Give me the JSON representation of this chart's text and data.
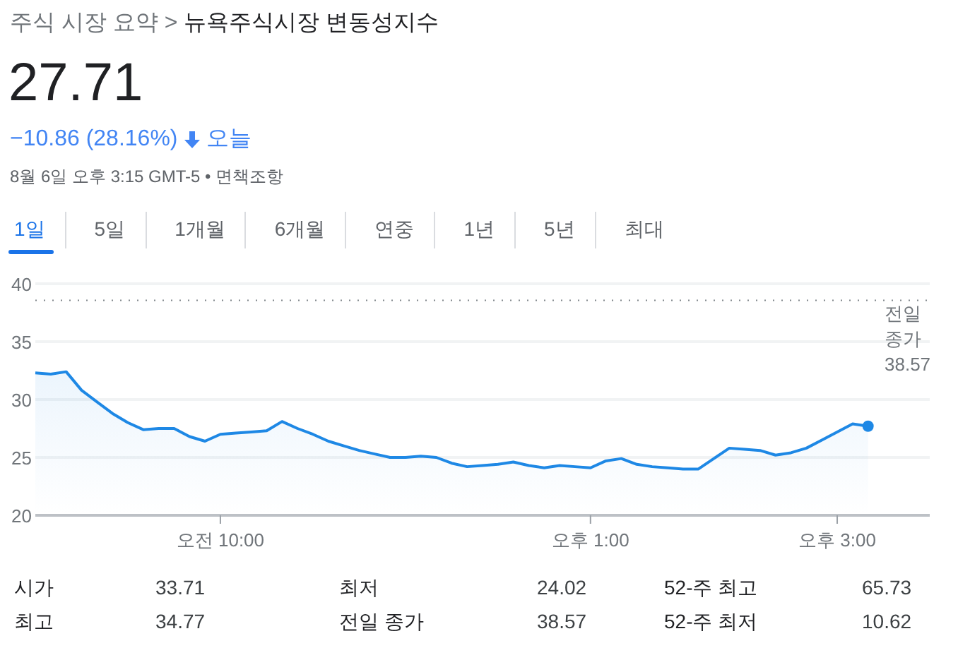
{
  "chart_data": {
    "type": "area",
    "title": "뉴욕주식시장 변동성지수",
    "annotations": [
      "주식 시장 요약 >",
      "27.71",
      "−10.86 (28.16%)",
      "오늘",
      "8월 6일 오후 3:15 GMT-5 • 면책조항",
      "1일",
      "5일",
      "1개월",
      "6개월",
      "연중",
      "1년",
      "5년",
      "최대",
      "시가",
      "33.71",
      "최저",
      "24.02",
      "52-주 최고",
      "65.73",
      "최고",
      "34.77",
      "전일 종가",
      "38.57",
      "52-주 최저",
      "10.62"
    ],
    "categories": [
      null,
      null,
      null,
      null,
      null,
      null,
      null,
      null,
      null,
      null,
      null,
      null,
      "오전 10:00",
      null,
      null,
      null,
      null,
      null,
      null,
      null,
      null,
      null,
      null,
      null,
      null,
      null,
      null,
      null,
      null,
      null,
      null,
      null,
      null,
      null,
      null,
      null,
      "오후 1:00",
      null,
      null,
      null,
      null,
      null,
      null,
      null,
      null,
      null,
      null,
      null,
      null,
      null,
      null,
      null,
      "오후 3:00",
      null,
      null,
      null,
      null,
      null,
      null
    ],
    "series": [
      {
        "color": "#1e88e5",
        "values": [
          32.3,
          32.2,
          32.4,
          30.8,
          29.8,
          28.8,
          28.0,
          27.4,
          27.5,
          27.5,
          26.8,
          26.4,
          27.0,
          27.1,
          27.2,
          27.3,
          28.1,
          27.5,
          27.0,
          26.4,
          26.0,
          25.6,
          25.3,
          25.0,
          25.0,
          25.1,
          25.0,
          24.5,
          24.2,
          24.3,
          24.4,
          24.6,
          24.3,
          24.1,
          24.3,
          24.2,
          24.1,
          24.7,
          24.9,
          24.4,
          24.2,
          24.1,
          24.0,
          24.0,
          24.9,
          25.8,
          25.7,
          25.6,
          25.2,
          25.4,
          25.8,
          26.5,
          27.2,
          27.9,
          27.7,
          null,
          null,
          null,
          null
        ]
      }
    ],
    "ylim": [
      20,
      40
    ],
    "yticks": [
      20,
      25,
      30,
      35,
      40
    ],
    "grid": "y",
    "marker": "none",
    "ref_lines": [
      {
        "axis": "y",
        "value": 38.57,
        "label": "전일 종가",
        "line_style": "dotted",
        "color": "#80868b"
      }
    ]
  }
}
